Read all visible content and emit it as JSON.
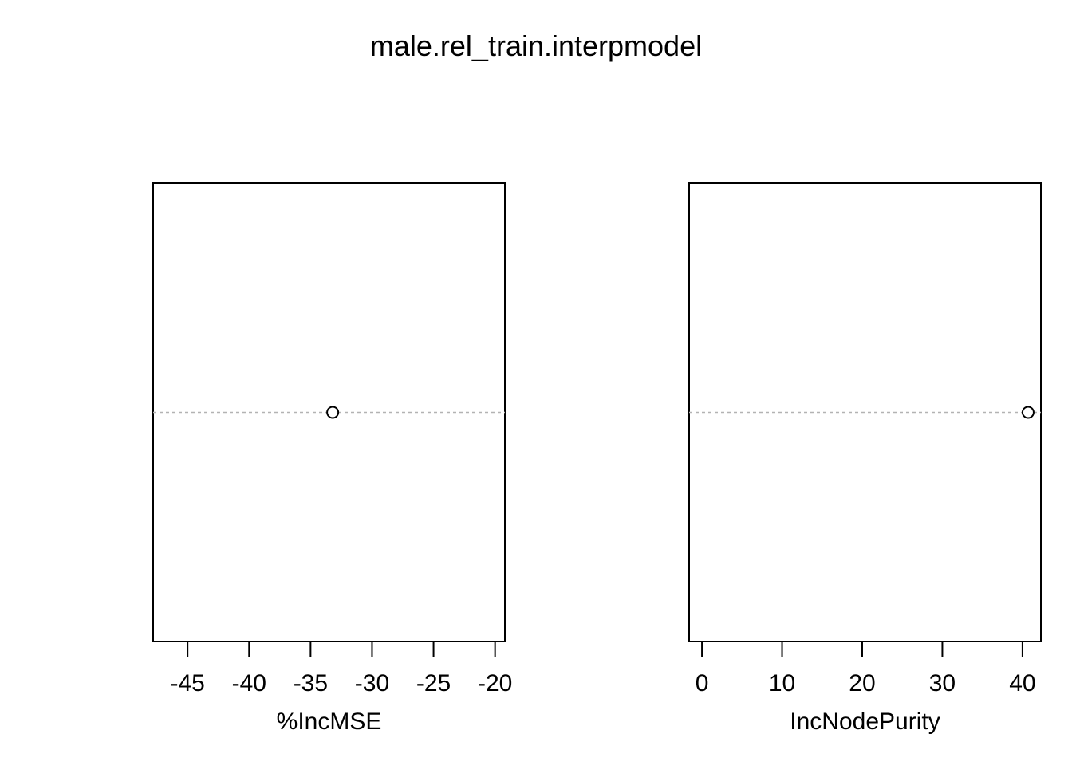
{
  "title": "male.rel_train.interpmodel",
  "colors": {
    "dot_line": "#b3b3b3",
    "point_stroke": "#000000",
    "point_fill": "#ffffff",
    "frame": "#000000"
  },
  "chart_data": [
    {
      "type": "scatter",
      "subtype": "dotchart",
      "title": "",
      "xlabel": "%IncMSE",
      "ylabel": "",
      "xlim": [
        -47.8,
        -19.2
      ],
      "xticks": [
        -45,
        -40,
        -35,
        -30,
        -25,
        -20
      ],
      "xtick_labels": [
        "-45",
        "-40",
        "-35",
        "-30",
        "-25",
        "-20"
      ],
      "categories": [
        ""
      ],
      "values": [
        -33.2
      ],
      "grid": false
    },
    {
      "type": "scatter",
      "subtype": "dotchart",
      "title": "",
      "xlabel": "IncNodePurity",
      "ylabel": "",
      "xlim": [
        -1.6,
        42.3
      ],
      "xticks": [
        0,
        10,
        20,
        30,
        40
      ],
      "xtick_labels": [
        "0",
        "10",
        "20",
        "30",
        "40"
      ],
      "categories": [
        ""
      ],
      "values": [
        40.7
      ],
      "grid": false
    }
  ]
}
